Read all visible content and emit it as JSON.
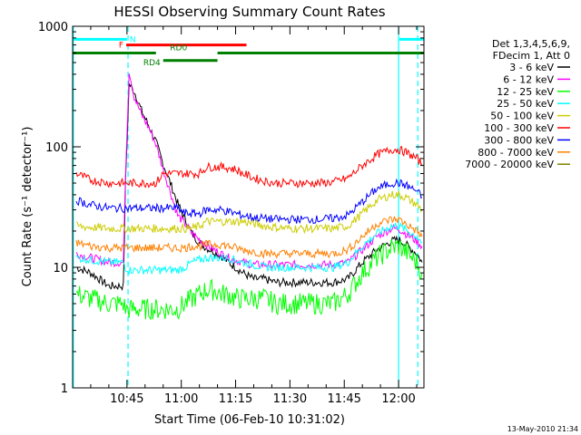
{
  "chart_data": {
    "type": "line",
    "title": "HESSI Observing Summary Count Rates",
    "xlabel": "Start Time (06-Feb-10 10:31:02)",
    "ylabel": "Count Rate (s⁻¹ detector⁻¹)",
    "y_scale": "log",
    "ylim": [
      1,
      1000
    ],
    "xlim_minutes_after_10_30": [
      0,
      97
    ],
    "x_ticks": [
      "10:45",
      "11:00",
      "11:15",
      "11:30",
      "11:45",
      "12:00"
    ],
    "x_tick_minutes_after_10_30": [
      15,
      30,
      45,
      60,
      75,
      90
    ],
    "y_ticks": [
      "1",
      "10",
      "100",
      "1000"
    ],
    "y_tick_values": [
      1,
      10,
      100,
      1000
    ],
    "legend_header": [
      "Det 1,3,4,5,6,9,",
      "FDecim 1, Att 0"
    ],
    "legend_position": "right",
    "timestamp": "13-May-2010 21:34",
    "x_minutes_after_10_30": [
      1,
      5,
      10,
      14,
      14.6,
      15.6,
      17,
      19,
      21,
      23,
      25,
      27,
      29,
      31,
      33,
      35,
      37,
      39,
      41,
      43,
      45,
      47,
      50,
      53,
      56,
      60,
      64,
      68,
      72,
      76,
      80,
      84,
      88,
      90,
      92,
      95,
      96.5
    ],
    "series": [
      {
        "name": "3 - 6 keV",
        "color": "#000000",
        "values": [
          10,
          9,
          7,
          7,
          50,
          330,
          290,
          200,
          150,
          110,
          72,
          50,
          34,
          25,
          19,
          16,
          14.5,
          13.5,
          12.5,
          11,
          10,
          9,
          8,
          8,
          7.5,
          7.5,
          7.5,
          7.5,
          7.5,
          8,
          11,
          14,
          16.5,
          17,
          15.5,
          13,
          11
        ]
      },
      {
        "name": "6 - 12 keV",
        "color": "#ff00ff",
        "values": [
          13,
          12,
          11,
          11,
          60,
          430,
          260,
          185,
          145,
          105,
          65,
          42,
          27,
          23,
          19,
          17,
          15.5,
          14,
          13,
          12,
          11.5,
          11,
          10.5,
          10.5,
          10.5,
          10.5,
          10.5,
          10.5,
          10.5,
          11,
          14,
          18,
          21,
          21,
          19,
          16.5,
          15
        ]
      },
      {
        "name": "12 - 25 keV",
        "color": "#00ff00",
        "values": [
          6,
          5.5,
          5,
          5,
          4.5,
          4.5,
          4.5,
          4.5,
          4.5,
          4.5,
          4.5,
          4.5,
          4.5,
          5,
          5.5,
          6,
          6.5,
          6.5,
          6,
          6,
          5.5,
          5.5,
          5.5,
          5.5,
          5,
          5,
          5,
          5,
          5,
          6,
          9,
          12,
          14.5,
          15,
          13.5,
          11,
          9
        ]
      },
      {
        "name": "25 - 50 keV",
        "color": "#00ffff",
        "values": [
          12,
          11.5,
          11,
          11,
          10,
          9.5,
          9.5,
          9.5,
          9.5,
          9.5,
          9.5,
          9.5,
          9.5,
          10,
          11,
          11.5,
          12,
          12,
          12,
          12,
          11.5,
          11,
          10.5,
          10,
          10,
          10,
          10,
          10,
          10,
          11,
          15,
          19,
          22,
          22,
          20.5,
          18,
          16
        ]
      },
      {
        "name": "50 - 100 keV",
        "color": "#cccc00",
        "values": [
          22,
          21.5,
          21,
          21,
          21,
          21,
          21,
          21,
          21,
          21,
          21,
          21,
          21,
          21,
          21,
          22,
          24,
          24,
          24,
          24,
          24,
          24,
          23,
          22,
          21.5,
          21,
          21,
          21,
          21,
          22,
          28,
          36,
          40,
          40,
          38,
          33,
          30
        ]
      },
      {
        "name": "100 - 300 keV",
        "color": "#ff0000",
        "values": [
          60,
          53,
          50,
          50,
          50,
          50,
          50,
          50,
          50,
          50,
          60,
          60,
          60,
          60,
          60,
          60,
          68,
          68,
          68,
          67,
          65,
          60,
          55,
          52,
          50,
          50,
          50,
          50,
          51,
          55,
          70,
          86,
          95,
          95,
          90,
          80,
          72
        ]
      },
      {
        "name": "300 - 800 keV",
        "color": "#0000ff",
        "values": [
          36,
          33,
          31,
          31,
          31,
          31,
          31,
          31,
          31,
          31,
          31,
          31,
          31,
          28,
          28,
          28,
          30,
          30,
          30,
          29,
          28,
          27,
          26,
          25.5,
          25,
          25,
          25,
          25,
          25.5,
          27,
          35,
          45,
          50,
          50,
          48,
          43,
          38
        ]
      },
      {
        "name": "800 - 7000 keV",
        "color": "#ff8000",
        "values": [
          16,
          15,
          14.5,
          14.5,
          14.5,
          14.5,
          14.5,
          14.5,
          14.5,
          14.5,
          14.5,
          14.5,
          14.5,
          14.5,
          15,
          15,
          15.5,
          15.5,
          15.5,
          15,
          14.5,
          14,
          13.5,
          13,
          13,
          13,
          13,
          13,
          13,
          14,
          18,
          23,
          25,
          25,
          23,
          20,
          18
        ]
      },
      {
        "name": "7000 - 20000 keV",
        "color": "#808000",
        "values": []
      }
    ],
    "attenuator_bars": [
      {
        "label": "N",
        "color": "#00ffff",
        "level": 780,
        "start": 0,
        "end": 15
      },
      {
        "label": "N",
        "color": "#00ffff",
        "level": 780,
        "start": 90.2,
        "end": 97
      },
      {
        "label": "F",
        "color": "#ff0000",
        "level": 700,
        "start": 14.8,
        "end": 48
      },
      {
        "label": "RD0",
        "color": "#008000",
        "level": 600,
        "start": 0,
        "end": 23
      },
      {
        "label": "RD0",
        "color": "#008000",
        "level": 600,
        "start": 40,
        "end": 97
      },
      {
        "label": "RD4",
        "color": "#008000",
        "level": 520,
        "start": 25,
        "end": 40
      }
    ],
    "markers": [
      {
        "x": 0.2,
        "style": "solid"
      },
      {
        "x": 15.3,
        "style": "dashed"
      },
      {
        "x": 90.0,
        "style": "solid"
      },
      {
        "x": 95.3,
        "style": "dashed"
      }
    ]
  }
}
